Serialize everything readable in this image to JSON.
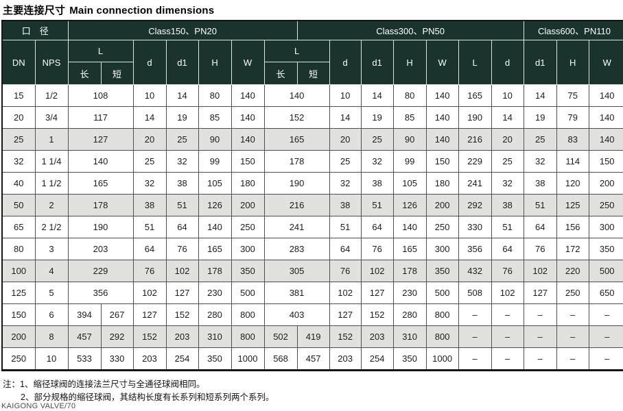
{
  "title": {
    "zh": "主要连接尺寸",
    "en": "Main connection dimensions"
  },
  "table": {
    "groups": [
      {
        "label": "口　径"
      },
      {
        "label": "Class150、PN20"
      },
      {
        "label": "Class300、PN50"
      },
      {
        "label": "Class600、PN110"
      }
    ],
    "subheaders": {
      "dn": "DN",
      "nps": "NPS",
      "l": "L",
      "long": "长",
      "short": "短",
      "d": "d",
      "d1": "d1",
      "h": "H",
      "w": "W"
    },
    "rows": [
      {
        "shaded": false,
        "cells": [
          "15",
          "1/2",
          {
            "v": "108",
            "span": 2
          },
          "10",
          "14",
          "80",
          "140",
          {
            "v": "140",
            "span": 2
          },
          "10",
          "14",
          "80",
          "140",
          "165",
          "10",
          "14",
          "75",
          "140"
        ]
      },
      {
        "shaded": false,
        "cells": [
          "20",
          "3/4",
          {
            "v": "117",
            "span": 2
          },
          "14",
          "19",
          "85",
          "140",
          {
            "v": "152",
            "span": 2
          },
          "14",
          "19",
          "85",
          "140",
          "190",
          "14",
          "19",
          "79",
          "140"
        ]
      },
      {
        "shaded": true,
        "cells": [
          "25",
          "1",
          {
            "v": "127",
            "span": 2
          },
          "20",
          "25",
          "90",
          "140",
          {
            "v": "165",
            "span": 2
          },
          "20",
          "25",
          "90",
          "140",
          "216",
          "20",
          "25",
          "83",
          "140"
        ]
      },
      {
        "shaded": false,
        "cells": [
          "32",
          "1 1/4",
          {
            "v": "140",
            "span": 2
          },
          "25",
          "32",
          "99",
          "150",
          {
            "v": "178",
            "span": 2
          },
          "25",
          "32",
          "99",
          "150",
          "229",
          "25",
          "32",
          "114",
          "150"
        ]
      },
      {
        "shaded": false,
        "cells": [
          "40",
          "1 1/2",
          {
            "v": "165",
            "span": 2
          },
          "32",
          "38",
          "105",
          "180",
          {
            "v": "190",
            "span": 2
          },
          "32",
          "38",
          "105",
          "180",
          "241",
          "32",
          "38",
          "120",
          "200"
        ]
      },
      {
        "shaded": true,
        "cells": [
          "50",
          "2",
          {
            "v": "178",
            "span": 2
          },
          "38",
          "51",
          "126",
          "200",
          {
            "v": "216",
            "span": 2
          },
          "38",
          "51",
          "126",
          "200",
          "292",
          "38",
          "51",
          "125",
          "250"
        ]
      },
      {
        "shaded": false,
        "cells": [
          "65",
          "2 1/2",
          {
            "v": "190",
            "span": 2
          },
          "51",
          "64",
          "140",
          "250",
          {
            "v": "241",
            "span": 2
          },
          "51",
          "64",
          "140",
          "250",
          "330",
          "51",
          "64",
          "156",
          "300"
        ]
      },
      {
        "shaded": false,
        "cells": [
          "80",
          "3",
          {
            "v": "203",
            "span": 2
          },
          "64",
          "76",
          "165",
          "300",
          {
            "v": "283",
            "span": 2
          },
          "64",
          "76",
          "165",
          "300",
          "356",
          "64",
          "76",
          "172",
          "350"
        ]
      },
      {
        "shaded": true,
        "cells": [
          "100",
          "4",
          {
            "v": "229",
            "span": 2
          },
          "76",
          "102",
          "178",
          "350",
          {
            "v": "305",
            "span": 2
          },
          "76",
          "102",
          "178",
          "350",
          "432",
          "76",
          "102",
          "220",
          "500"
        ]
      },
      {
        "shaded": false,
        "cells": [
          "125",
          "5",
          {
            "v": "356",
            "span": 2
          },
          "102",
          "127",
          "230",
          "500",
          {
            "v": "381",
            "span": 2
          },
          "102",
          "127",
          "230",
          "500",
          "508",
          "102",
          "127",
          "250",
          "650"
        ]
      },
      {
        "shaded": false,
        "cells": [
          "150",
          "6",
          "394",
          "267",
          "127",
          "152",
          "280",
          "800",
          {
            "v": "403",
            "span": 2
          },
          "127",
          "152",
          "280",
          "800",
          "–",
          "–",
          "–",
          "–",
          "–"
        ]
      },
      {
        "shaded": true,
        "cells": [
          "200",
          "8",
          "457",
          "292",
          "152",
          "203",
          "310",
          "800",
          "502",
          "419",
          "152",
          "203",
          "310",
          "800",
          "–",
          "–",
          "–",
          "–",
          "–"
        ]
      },
      {
        "shaded": false,
        "cells": [
          "250",
          "10",
          "533",
          "330",
          "203",
          "254",
          "350",
          "1000",
          "568",
          "457",
          "203",
          "254",
          "350",
          "1000",
          "–",
          "–",
          "–",
          "–",
          "–"
        ]
      }
    ]
  },
  "notes": {
    "line1": "注：1、缩径球阀的连接法兰尺寸与全通径球阀相同。",
    "line2": "2、部分规格的缩径球阀，其结构长度有长系列和短系列两个系列。"
  },
  "footer": "KAIGONG VALVE/70",
  "colors": {
    "header_bg": "#1a332c",
    "row_shade": "#e1e1df",
    "grid": "#4f4f4f"
  }
}
